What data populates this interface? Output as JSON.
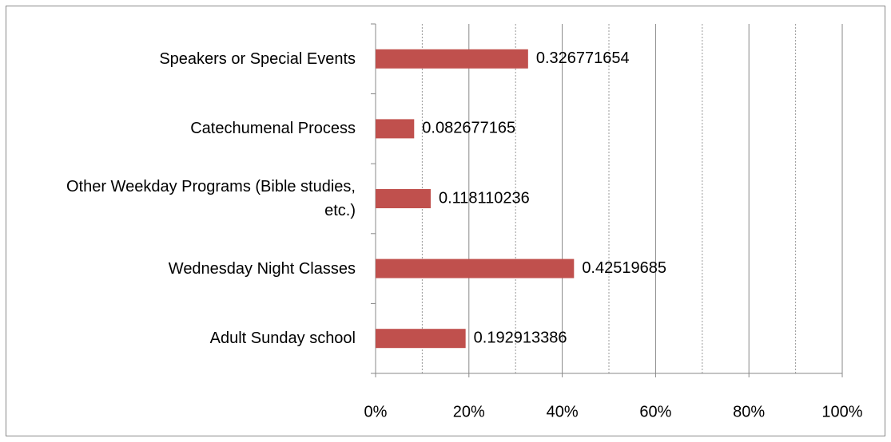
{
  "chart_data": {
    "type": "hbar",
    "categories": [
      "Speakers or Special Events",
      "Catechumenal Process",
      "Other Weekday Programs (Bible studies, etc.)",
      "Wednesday Night Classes",
      "Adult Sunday school"
    ],
    "values": [
      0.326771654,
      0.082677165,
      0.118110236,
      0.42519685,
      0.192913386
    ],
    "color": "#c0504d",
    "xlim": [
      0,
      1
    ],
    "xticks": [
      {
        "value": 0,
        "label": "0%"
      },
      {
        "value": 0.2,
        "label": "20%"
      },
      {
        "value": 0.4,
        "label": "40%"
      },
      {
        "value": 0.6,
        "label": "60%"
      },
      {
        "value": 0.8,
        "label": "80%"
      },
      {
        "value": 1,
        "label": "100%"
      }
    ],
    "xminorticks": [
      0.1,
      0.3,
      0.5,
      0.7,
      0.9
    ],
    "grid": true
  }
}
